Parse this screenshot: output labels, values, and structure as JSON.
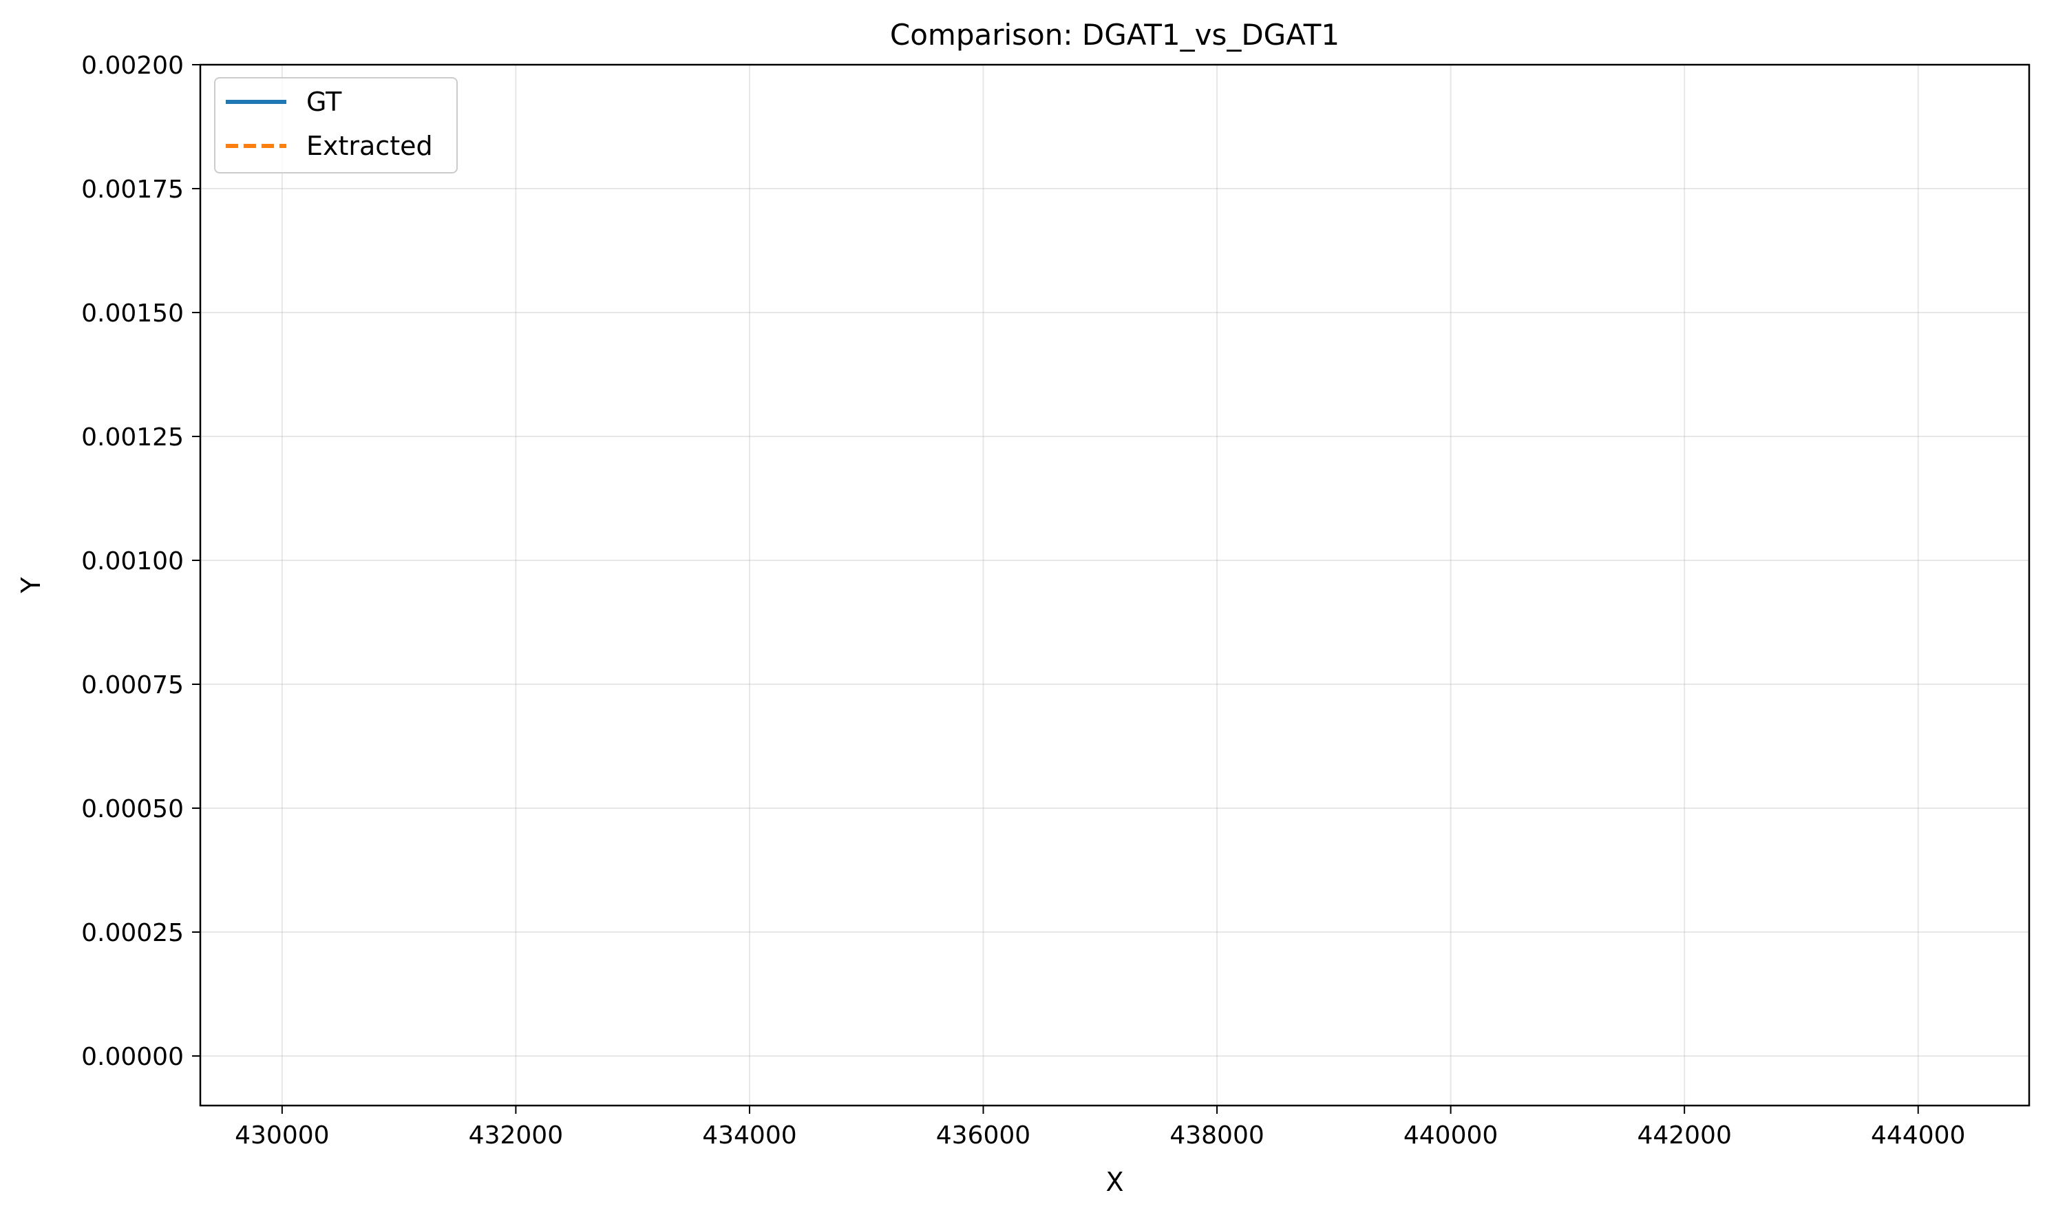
{
  "chart_data": {
    "type": "line",
    "title": "Comparison: DGAT1_vs_DGAT1",
    "xlabel": "X",
    "ylabel": "Y",
    "xlim": [
      429300,
      444950
    ],
    "ylim": [
      -0.0001,
      0.002
    ],
    "x_ticks": [
      {
        "value": 430000,
        "label": "430000"
      },
      {
        "value": 432000,
        "label": "432000"
      },
      {
        "value": 434000,
        "label": "434000"
      },
      {
        "value": 436000,
        "label": "436000"
      },
      {
        "value": 438000,
        "label": "438000"
      },
      {
        "value": 440000,
        "label": "440000"
      },
      {
        "value": 442000,
        "label": "442000"
      },
      {
        "value": 444000,
        "label": "444000"
      }
    ],
    "y_ticks": [
      {
        "value": 0.0,
        "label": "0.00000"
      },
      {
        "value": 0.00025,
        "label": "0.00025"
      },
      {
        "value": 0.0005,
        "label": "0.00050"
      },
      {
        "value": 0.00075,
        "label": "0.00075"
      },
      {
        "value": 0.001,
        "label": "0.00100"
      },
      {
        "value": 0.00125,
        "label": "0.00125"
      },
      {
        "value": 0.0015,
        "label": "0.00150"
      },
      {
        "value": 0.00175,
        "label": "0.00175"
      },
      {
        "value": 0.002,
        "label": "0.00200"
      }
    ],
    "grid": true,
    "legend_position": "top-left",
    "series": [
      {
        "name": "GT",
        "color": "#1f77b4",
        "line_style": "solid",
        "points": []
      },
      {
        "name": "Extracted",
        "color": "#ff7f0e",
        "line_style": "dashed",
        "points": []
      }
    ]
  }
}
